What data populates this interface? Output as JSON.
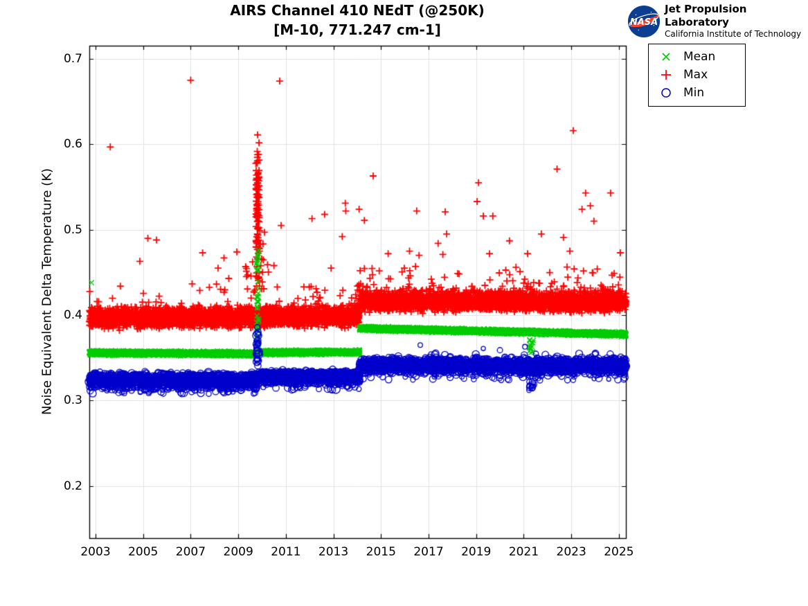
{
  "branding": {
    "nasa_wordmark": "NASA",
    "org_name": "Jet Propulsion Laboratory",
    "org_sub": "California Institute of Technology",
    "colors": {
      "nasa_blue": "#0b3d91",
      "nasa_red": "#fc3d21"
    }
  },
  "chart_data": {
    "type": "scatter",
    "title": "AIRS Channel 410 NEdT (@250K)",
    "subtitle": "[M-10, 771.247 cm-1]",
    "xlabel": "",
    "ylabel": "Noise Equivalent Delta Temperature (K)",
    "xlim": [
      2002.738,
      2025.295
    ],
    "ylim": [
      0.139,
      0.7154
    ],
    "xticks": [
      2003,
      2005,
      2007,
      2009,
      2011,
      2013,
      2015,
      2017,
      2019,
      2021,
      2023,
      2025
    ],
    "yticks": [
      0.2,
      0.3,
      0.4,
      0.5,
      0.6,
      0.7
    ],
    "grid": true,
    "grid_color": "#e0e0e0",
    "axis_color": "#000000",
    "legend": {
      "position": "outside-top-right",
      "entries": [
        {
          "label": "Mean",
          "marker": "x",
          "color": "#00cc00"
        },
        {
          "label": "Max",
          "marker": "+",
          "color": "#ff0000"
        },
        {
          "label": "Min",
          "marker": "o",
          "color": "#0000cc"
        }
      ]
    },
    "series": [
      {
        "name": "Max",
        "marker": "+",
        "color": "#ff0000",
        "bands": [
          {
            "x": [
              2002.74,
              2009.78
            ],
            "center": [
              0.3975,
              0.3975
            ],
            "halfwidth": 0.013,
            "n": 2300,
            "tails": [
              {
                "dir": 1,
                "p": 0.02,
                "extra": 0.028
              },
              {
                "dir": -1,
                "p": 0.006,
                "extra": 0.006
              }
            ]
          },
          {
            "x": [
              2009.84,
              2014.1
            ],
            "center": [
              0.3985,
              0.3985
            ],
            "halfwidth": 0.0125,
            "n": 1400,
            "tails": [
              {
                "dir": 1,
                "p": 0.02,
                "extra": 0.026
              }
            ]
          },
          {
            "x": [
              2014.1,
              2025.295
            ],
            "center": [
              0.4165,
              0.4155
            ],
            "halfwidth": 0.0125,
            "n": 3700,
            "tails": [
              {
                "dir": 1,
                "p": 0.035,
                "extra": 0.03
              }
            ]
          }
        ],
        "clusters": [
          {
            "x": [
              2009.74,
              2009.88
            ],
            "y": [
              0.43,
              0.621
            ],
            "n": 110,
            "bias": "mid"
          },
          {
            "x": [
              2009.3,
              2010.4
            ],
            "y": [
              0.425,
              0.465
            ],
            "n": 22,
            "bias": "uniform"
          },
          {
            "x": [
              2009.88,
              2010.05
            ],
            "y": [
              0.46,
              0.5
            ],
            "n": 6,
            "bias": "uniform"
          }
        ],
        "outliers": [
          [
            2003.62,
            0.597
          ],
          [
            2004.86,
            0.463
          ],
          [
            2005.2,
            0.49
          ],
          [
            2005.56,
            0.488
          ],
          [
            2007.0,
            0.675
          ],
          [
            2007.5,
            0.473
          ],
          [
            2008.15,
            0.455
          ],
          [
            2008.4,
            0.467
          ],
          [
            2008.6,
            0.443
          ],
          [
            2008.94,
            0.474
          ],
          [
            2010.1,
            0.497
          ],
          [
            2010.5,
            0.458
          ],
          [
            2010.74,
            0.674
          ],
          [
            2010.8,
            0.505
          ],
          [
            2012.1,
            0.513
          ],
          [
            2012.63,
            0.518
          ],
          [
            2012.9,
            0.455
          ],
          [
            2013.37,
            0.492
          ],
          [
            2013.5,
            0.531
          ],
          [
            2013.52,
            0.522
          ],
          [
            2014.08,
            0.524
          ],
          [
            2014.3,
            0.511
          ],
          [
            2014.67,
            0.563
          ],
          [
            2015.3,
            0.472
          ],
          [
            2016.2,
            0.475
          ],
          [
            2016.45,
            0.457
          ],
          [
            2016.5,
            0.522
          ],
          [
            2016.6,
            0.47
          ],
          [
            2017.4,
            0.484
          ],
          [
            2017.6,
            0.471
          ],
          [
            2017.7,
            0.521
          ],
          [
            2017.76,
            0.495
          ],
          [
            2019.04,
            0.533
          ],
          [
            2019.1,
            0.555
          ],
          [
            2019.3,
            0.516
          ],
          [
            2019.56,
            0.472
          ],
          [
            2019.7,
            0.516
          ],
          [
            2020.4,
            0.487
          ],
          [
            2021.16,
            0.472
          ],
          [
            2021.74,
            0.495
          ],
          [
            2022.4,
            0.571
          ],
          [
            2022.67,
            0.491
          ],
          [
            2022.94,
            0.475
          ],
          [
            2023.08,
            0.616
          ],
          [
            2023.45,
            0.524
          ],
          [
            2023.6,
            0.543
          ],
          [
            2023.8,
            0.528
          ],
          [
            2023.95,
            0.51
          ],
          [
            2024.65,
            0.543
          ],
          [
            2025.06,
            0.473
          ]
        ]
      },
      {
        "name": "Mean",
        "marker": "x",
        "color": "#00cc00",
        "bands": [
          {
            "x": [
              2002.74,
              2009.78
            ],
            "center": [
              0.3558,
              0.3548
            ],
            "halfwidth": 0.0028,
            "n": 2300
          },
          {
            "x": [
              2009.84,
              2014.1
            ],
            "center": [
              0.3562,
              0.3568
            ],
            "halfwidth": 0.0028,
            "n": 1400
          },
          {
            "x": [
              2014.1,
              2025.295
            ],
            "center": [
              0.3845,
              0.3775
            ],
            "halfwidth": 0.0028,
            "n": 3700
          }
        ],
        "clusters": [
          {
            "x": [
              2009.76,
              2009.86
            ],
            "y": [
              0.36,
              0.478
            ],
            "n": 45,
            "bias": "uniform"
          },
          {
            "x": [
              2021.22,
              2021.4
            ],
            "y": [
              0.356,
              0.374
            ],
            "n": 14,
            "bias": "uniform"
          }
        ],
        "outliers": [
          [
            2002.83,
            0.438
          ]
        ]
      },
      {
        "name": "Min",
        "marker": "o",
        "color": "#0000cc",
        "bands": [
          {
            "x": [
              2002.74,
              2009.78
            ],
            "center": [
              0.3245,
              0.3235
            ],
            "halfwidth": 0.009,
            "n": 2300,
            "tails": [
              {
                "dir": -1,
                "p": 0.05,
                "extra": 0.008
              }
            ]
          },
          {
            "x": [
              2009.84,
              2014.1
            ],
            "center": [
              0.328,
              0.3275
            ],
            "halfwidth": 0.008,
            "n": 1400,
            "tails": [
              {
                "dir": -1,
                "p": 0.04,
                "extra": 0.008
              }
            ]
          },
          {
            "x": [
              2014.1,
              2025.295
            ],
            "center": [
              0.3415,
              0.3405
            ],
            "halfwidth": 0.009,
            "n": 3700,
            "tails": [
              {
                "dir": -1,
                "p": 0.035,
                "extra": 0.009
              },
              {
                "dir": 1,
                "p": 0.01,
                "extra": 0.007
              }
            ]
          }
        ],
        "clusters": [
          {
            "x": [
              2009.76,
              2009.86
            ],
            "y": [
              0.34,
              0.387
            ],
            "n": 30,
            "bias": "uniform"
          },
          {
            "x": [
              2021.22,
              2021.4
            ],
            "y": [
              0.312,
              0.324
            ],
            "n": 12,
            "bias": "uniform"
          }
        ],
        "outliers": [
          [
            2016.65,
            0.365
          ],
          [
            2019.3,
            0.361
          ],
          [
            2020.0,
            0.359
          ],
          [
            2021.05,
            0.363
          ]
        ]
      }
    ]
  }
}
